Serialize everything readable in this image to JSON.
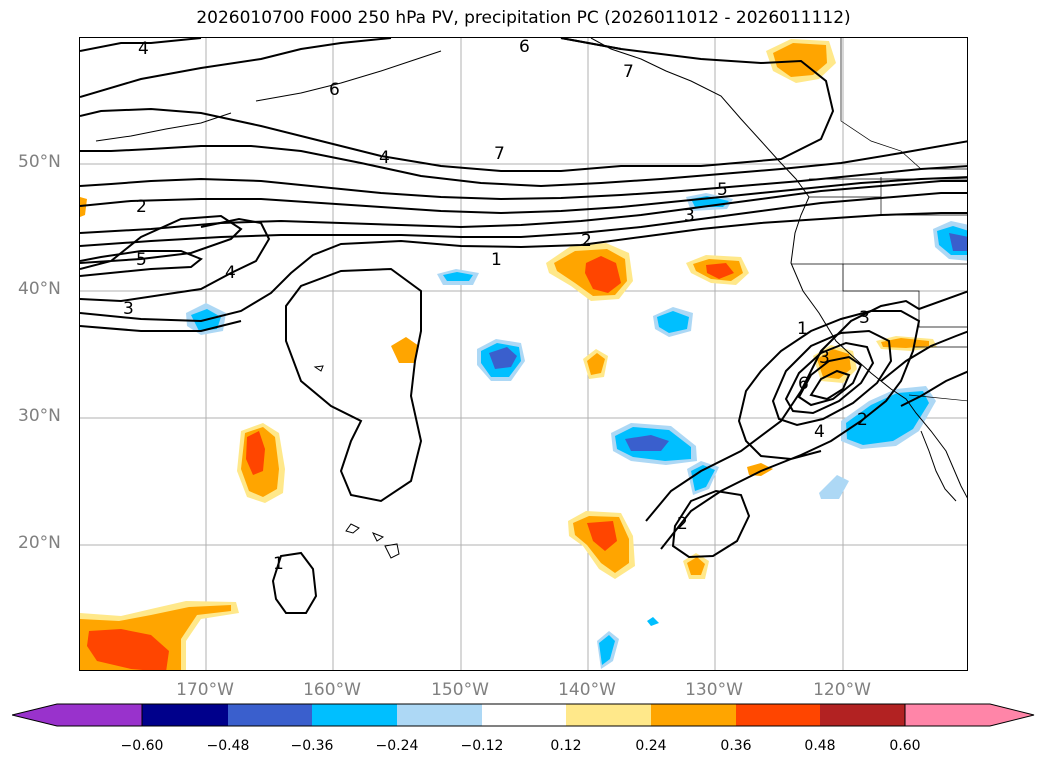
{
  "title": "2026010700 F000 250 hPa PV, precipitation PC (2026011012 - 2026011112)",
  "lat_labels": [
    "50°N",
    "40°N",
    "30°N",
    "20°N"
  ],
  "lon_labels": [
    "170°W",
    "160°W",
    "150°W",
    "140°W",
    "130°W",
    "120°W"
  ],
  "contour_labels": [
    "4",
    "6",
    "6",
    "7",
    "7",
    "4",
    "2",
    "5",
    "3",
    "4",
    "3",
    "5",
    "3",
    "2",
    "1",
    "1",
    "3",
    "6",
    "4",
    "2",
    "2",
    "1"
  ],
  "colorbar": {
    "ticks": [
      "−0.60",
      "−0.48",
      "−0.36",
      "−0.24",
      "−0.12",
      "0.12",
      "0.24",
      "0.36",
      "0.48",
      "0.60"
    ],
    "colors": [
      "#9932cc",
      "#00008b",
      "#3a5fcd",
      "#00bfff",
      "#add8f5",
      "#ffffff",
      "#ffe88a",
      "#ffa500",
      "#ff4500",
      "#b22222",
      "#ff85a8"
    ]
  }
}
